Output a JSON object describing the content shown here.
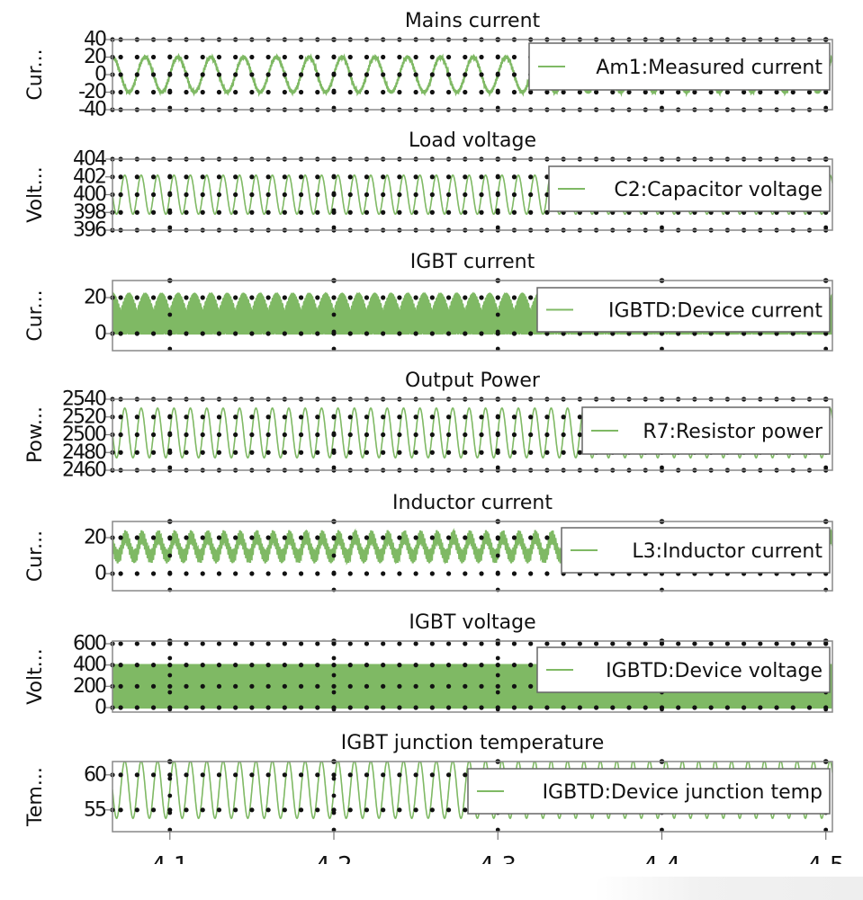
{
  "chart_data": [
    {
      "type": "line",
      "title": "Mains current",
      "ylabel": "Cur...",
      "ylim": [
        -40,
        40
      ],
      "yticks": [
        40,
        20,
        0,
        -20,
        -40
      ],
      "series": [
        {
          "name": "Am1:Measured current",
          "waveform": "sine with switching ripple",
          "frequency_hz": 50,
          "min": -20,
          "max": 20
        }
      ],
      "legend": "top-right"
    },
    {
      "type": "line",
      "title": "Load voltage",
      "ylabel": "Volt...",
      "ylim": [
        396,
        404
      ],
      "yticks": [
        404,
        402,
        400,
        398,
        396
      ],
      "series": [
        {
          "name": "C2:Capacitor voltage",
          "waveform": "sine",
          "frequency_hz": 100,
          "min": 397.8,
          "max": 402.2
        }
      ],
      "legend": "top-right"
    },
    {
      "type": "line",
      "title": "IGBT current",
      "ylabel": "Cur...",
      "ylim": [
        -9.5,
        29.5
      ],
      "yticks": [
        20,
        0
      ],
      "series": [
        {
          "name": "IGBTD:Device current",
          "waveform": "switched pulses",
          "frequency_hz": 100,
          "min": 0,
          "max": 22
        }
      ],
      "legend": "top-right"
    },
    {
      "type": "line",
      "title": "Output Power",
      "ylabel": "Pow...",
      "ylim": [
        2460,
        2540
      ],
      "yticks": [
        2540,
        2520,
        2500,
        2480,
        2460
      ],
      "series": [
        {
          "name": "R7:Resistor power",
          "waveform": "sine",
          "frequency_hz": 100,
          "min": 2474,
          "max": 2530
        }
      ],
      "legend": "top-right"
    },
    {
      "type": "line",
      "title": "Inductor current",
      "ylabel": "Cur...",
      "ylim": [
        -9.5,
        29
      ],
      "yticks": [
        20,
        0
      ],
      "series": [
        {
          "name": "L3:Inductor current",
          "waveform": "rectified sine with ripple",
          "frequency_hz": 100,
          "min": 1,
          "max": 22
        }
      ],
      "legend": "top-right"
    },
    {
      "type": "line",
      "title": "IGBT voltage",
      "ylabel": "Volt...",
      "ylim": [
        -42,
        625
      ],
      "yticks": [
        600,
        400,
        200,
        0
      ],
      "series": [
        {
          "name": "IGBTD:Device voltage",
          "waveform": "switched square",
          "min": 0,
          "max": 400
        }
      ],
      "legend": "top-right"
    },
    {
      "type": "line",
      "title": "IGBT junction temperature",
      "ylabel": "Tem...",
      "ylim": [
        51.9,
        61.9
      ],
      "yticks": [
        60,
        55
      ],
      "series": [
        {
          "name": "IGBTD:Device junction temp",
          "waveform": "sine",
          "frequency_hz": 100,
          "min": 53.8,
          "max": 62
        }
      ],
      "legend": "top-right"
    }
  ],
  "x_axis": {
    "xlim": [
      4.065,
      4.504
    ],
    "xticks": [
      4.1,
      4.2,
      4.3,
      4.4,
      4.5
    ],
    "xticklabels": [
      "4.1",
      "4.2",
      "4.3",
      "4.4",
      "4.5"
    ]
  },
  "grid": "dotted",
  "colors": {
    "series": "#7fb964",
    "grid": "#111111",
    "frame": "#888888"
  }
}
